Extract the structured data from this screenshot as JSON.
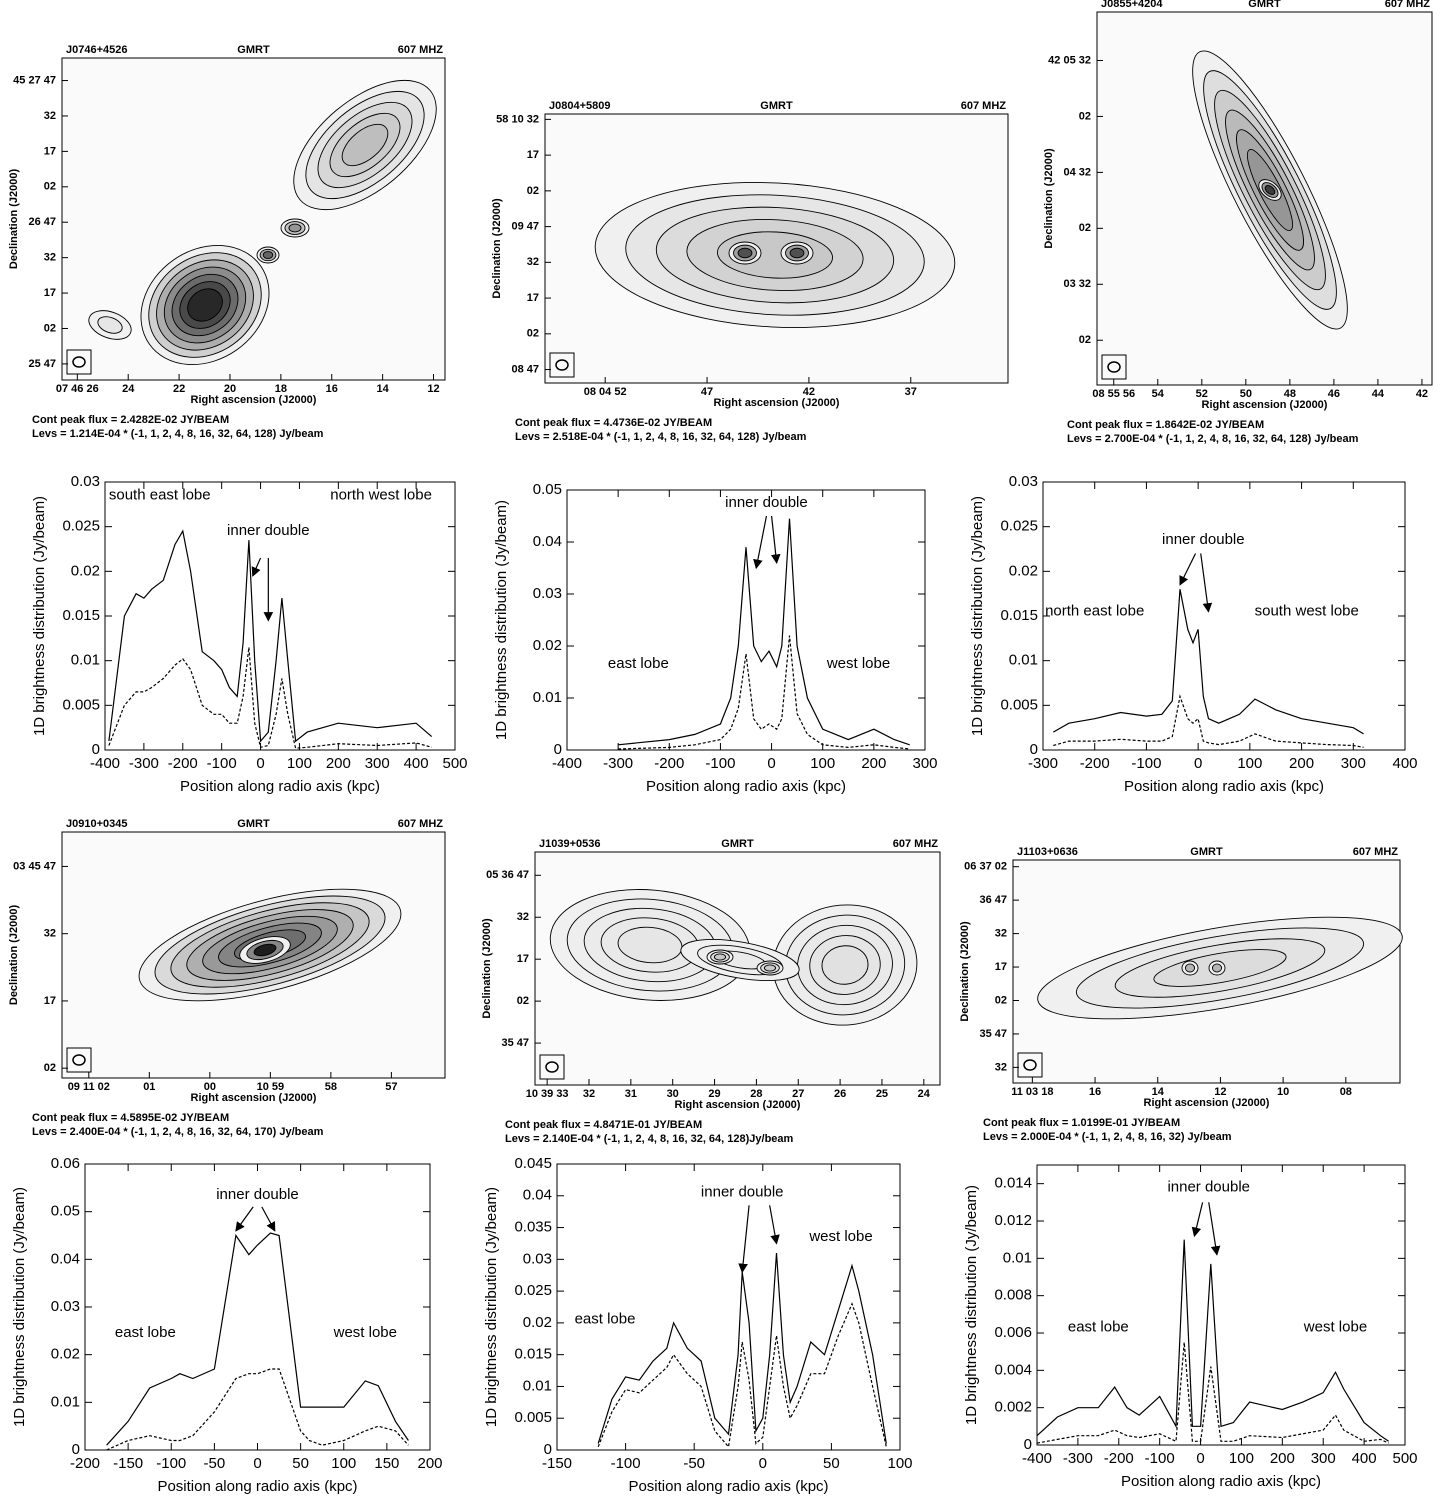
{
  "chart_data": [
    {
      "type": "radio-map",
      "source": "J0746+4526",
      "telescope": "GMRT",
      "frequency": "607 MHZ",
      "xlabel": "Right ascension (J2000)",
      "ylabel": "Declination (J2000)",
      "xticklabels": [
        "07 46 26",
        "24",
        "22",
        "20",
        "18",
        "16",
        "14",
        "12"
      ],
      "yticklabels": [
        "45 27 47",
        "32",
        "17",
        "02",
        "26 47",
        "32",
        "17",
        "02",
        "25 47"
      ],
      "notes": [
        "Cont peak flux =  2.4282E-02 JY/BEAM",
        "Levs = 1.214E-04 * (-1, 1, 2, 4, 8, 16, 32, 64, 128) Jy/beam"
      ]
    },
    {
      "type": "radio-map",
      "source": "J0804+5809",
      "telescope": "GMRT",
      "frequency": "607 MHZ",
      "xlabel": "Right ascension (J2000)",
      "ylabel": "Declination (J2000)",
      "xticklabels": [
        "08 04 52",
        "47",
        "42",
        "37"
      ],
      "yticklabels": [
        "58 10 32",
        "17",
        "02",
        "09 47",
        "32",
        "17",
        "02",
        "08 47"
      ],
      "notes": [
        "Cont peak flux =  4.4736E-02 JY/BEAM",
        "Levs = 2.518E-04 * (-1, 1, 2, 4, 8, 16, 32, 64, 128) Jy/beam"
      ]
    },
    {
      "type": "radio-map",
      "source": "J0855+4204",
      "telescope": "GMRT",
      "frequency": "607 MHZ",
      "xlabel": "Right ascension (J2000)",
      "ylabel": "Declination (J2000)",
      "xticklabels": [
        "08 55 56",
        "54",
        "52",
        "50",
        "48",
        "46",
        "44",
        "42"
      ],
      "yticklabels": [
        "42 05 32",
        "02",
        "04 32",
        "02",
        "03 32",
        "02"
      ],
      "notes": [
        "Cont peak flux =  1.8642E-02 JY/BEAM",
        "Levs = 2.700E-04 * (-1, 1, 2, 4, 8, 16, 32, 64, 128) Jy/beam"
      ]
    },
    {
      "type": "line",
      "xlabel": "Position along radio axis (kpc)",
      "ylabel": "1D brightness distribution (Jy/beam)",
      "xlim": [
        -400,
        500
      ],
      "xticks": [
        -400,
        -300,
        -200,
        -100,
        0,
        100,
        200,
        300,
        400,
        500
      ],
      "ylim": [
        0,
        0.03
      ],
      "yticks": [
        0,
        0.005,
        0.01,
        0.015,
        0.02,
        0.025,
        0.03
      ],
      "annotations": [
        "south east lobe",
        "north west lobe",
        "inner double"
      ],
      "x": [
        -390,
        -350,
        -320,
        -300,
        -280,
        -250,
        -220,
        -200,
        -180,
        -150,
        -120,
        -100,
        -80,
        -60,
        -45,
        -30,
        -15,
        0,
        20,
        40,
        55,
        70,
        90,
        120,
        200,
        300,
        400,
        440
      ],
      "series": [
        {
          "color": "#000000",
          "dashed": false,
          "values": [
            0.001,
            0.015,
            0.0175,
            0.017,
            0.018,
            0.019,
            0.023,
            0.0245,
            0.02,
            0.011,
            0.01,
            0.009,
            0.007,
            0.006,
            0.012,
            0.0235,
            0.01,
            0.001,
            0.002,
            0.01,
            0.017,
            0.01,
            0.001,
            0.002,
            0.003,
            0.0025,
            0.003,
            0.0015
          ]
        },
        {
          "color": "#000000",
          "dashed": true,
          "values": [
            0.0005,
            0.005,
            0.0065,
            0.0065,
            0.007,
            0.008,
            0.0095,
            0.0102,
            0.009,
            0.005,
            0.004,
            0.004,
            0.003,
            0.003,
            0.006,
            0.0115,
            0.003,
            0.0003,
            0.0005,
            0.004,
            0.008,
            0.004,
            0.0002,
            0.0003,
            0.0007,
            0.0005,
            0.0008,
            0.0003
          ]
        }
      ]
    },
    {
      "type": "line",
      "xlabel": "Position along radio axis (kpc)",
      "ylabel": "1D brightness distribution (Jy/beam)",
      "xlim": [
        -400,
        300
      ],
      "xticks": [
        -400,
        -300,
        -200,
        -100,
        0,
        100,
        200,
        300
      ],
      "ylim": [
        0,
        0.05
      ],
      "yticks": [
        0,
        0.01,
        0.02,
        0.03,
        0.04,
        0.05
      ],
      "annotations": [
        "inner double",
        "east lobe",
        "west lobe"
      ],
      "x": [
        -300,
        -200,
        -150,
        -100,
        -80,
        -65,
        -50,
        -35,
        -20,
        -5,
        10,
        20,
        35,
        50,
        70,
        100,
        150,
        200,
        240,
        270
      ],
      "series": [
        {
          "color": "#000000",
          "dashed": false,
          "values": [
            0.001,
            0.002,
            0.003,
            0.005,
            0.01,
            0.02,
            0.039,
            0.02,
            0.017,
            0.019,
            0.016,
            0.02,
            0.0445,
            0.02,
            0.01,
            0.004,
            0.002,
            0.004,
            0.002,
            0.001
          ]
        },
        {
          "color": "#000000",
          "dashed": true,
          "values": [
            0.0002,
            0.0005,
            0.001,
            0.002,
            0.004,
            0.008,
            0.0185,
            0.006,
            0.004,
            0.005,
            0.004,
            0.006,
            0.022,
            0.007,
            0.003,
            0.001,
            0.0005,
            0.001,
            0.0005,
            0.0002
          ]
        }
      ]
    },
    {
      "type": "line",
      "xlabel": "Position along radio axis (kpc)",
      "ylabel": "1D brightness distribution (Jy/beam)",
      "xlim": [
        -300,
        400
      ],
      "xticks": [
        -300,
        -200,
        -100,
        0,
        100,
        200,
        300,
        400
      ],
      "ylim": [
        0,
        0.03
      ],
      "yticks": [
        0,
        0.005,
        0.01,
        0.015,
        0.02,
        0.025,
        0.03
      ],
      "annotations": [
        "inner double",
        "north east lobe",
        "south west lobe"
      ],
      "x": [
        -280,
        -250,
        -200,
        -150,
        -100,
        -70,
        -50,
        -35,
        -20,
        -10,
        0,
        10,
        20,
        40,
        60,
        80,
        110,
        150,
        200,
        250,
        300,
        320
      ],
      "series": [
        {
          "color": "#000000",
          "dashed": false,
          "values": [
            0.002,
            0.003,
            0.0035,
            0.0042,
            0.0038,
            0.004,
            0.0055,
            0.018,
            0.0135,
            0.012,
            0.0135,
            0.006,
            0.0035,
            0.003,
            0.0035,
            0.004,
            0.0057,
            0.0045,
            0.0035,
            0.003,
            0.0025,
            0.0018
          ]
        },
        {
          "color": "#000000",
          "dashed": true,
          "values": [
            0.0005,
            0.001,
            0.001,
            0.0012,
            0.001,
            0.001,
            0.0015,
            0.006,
            0.0035,
            0.003,
            0.0035,
            0.001,
            0.0008,
            0.0006,
            0.0008,
            0.001,
            0.0018,
            0.001,
            0.0008,
            0.0006,
            0.0005,
            0.0003
          ]
        }
      ]
    },
    {
      "type": "radio-map",
      "source": "J0910+0345",
      "telescope": "GMRT",
      "frequency": "607 MHZ",
      "xlabel": "Right ascension (J2000)",
      "ylabel": "Declination (J2000)",
      "xticklabels": [
        "09 11 02",
        "01",
        "00",
        "10 59",
        "58",
        "57"
      ],
      "yticklabels": [
        "03 45 47",
        "32",
        "17",
        "02"
      ],
      "notes": [
        "Cont peak flux =  4.5895E-02 JY/BEAM",
        "Levs = 2.400E-04 * (-1, 1, 2, 4, 8, 16, 32, 64, 170) Jy/beam"
      ]
    },
    {
      "type": "radio-map",
      "source": "J1039+0536",
      "telescope": "GMRT",
      "frequency": "607 MHZ",
      "xlabel": "Right ascension (J2000)",
      "ylabel": "Declination (J2000)",
      "xticklabels": [
        "10 39 33",
        "32",
        "31",
        "30",
        "29",
        "28",
        "27",
        "26",
        "25",
        "24"
      ],
      "yticklabels": [
        "05 36 47",
        "32",
        "17",
        "02",
        "35 47"
      ],
      "notes": [
        "Cont peak flux =  4.8471E-01 JY/BEAM",
        "Levs = 2.140E-04 * (-1, 1, 2, 4, 8, 16, 32, 64, 128)Jy/beam"
      ]
    },
    {
      "type": "radio-map",
      "source": "J1103+0636",
      "telescope": "GMRT",
      "frequency": "607 MHZ",
      "xlabel": "Right ascension (J2000)",
      "ylabel": "Declination (J2000)",
      "xticklabels": [
        "11 03 18",
        "16",
        "14",
        "12",
        "10",
        "08"
      ],
      "yticklabels": [
        "06 37 02",
        "36 47",
        "32",
        "17",
        "02",
        "35 47",
        "32"
      ],
      "notes": [
        "Cont peak flux =  1.0199E-01 JY/BEAM",
        "Levs = 2.000E-04 * (-1, 1, 2, 4, 8, 16, 32) Jy/beam"
      ]
    },
    {
      "type": "line",
      "xlabel": "Position along radio axis (kpc)",
      "ylabel": "1D brightness distribution (Jy/beam)",
      "xlim": [
        -200,
        200
      ],
      "xticks": [
        -200,
        -150,
        -100,
        -50,
        0,
        50,
        100,
        150,
        200
      ],
      "ylim": [
        0,
        0.06
      ],
      "yticks": [
        0,
        0.01,
        0.02,
        0.03,
        0.04,
        0.05,
        0.06
      ],
      "annotations": [
        "inner double",
        "east lobe",
        "west lobe"
      ],
      "x": [
        -175,
        -150,
        -125,
        -100,
        -90,
        -75,
        -50,
        -25,
        -10,
        0,
        15,
        25,
        50,
        60,
        75,
        100,
        125,
        140,
        160,
        175
      ],
      "series": [
        {
          "color": "#000000",
          "dashed": false,
          "values": [
            0.001,
            0.006,
            0.013,
            0.015,
            0.016,
            0.015,
            0.017,
            0.045,
            0.041,
            0.043,
            0.0455,
            0.045,
            0.009,
            0.009,
            0.009,
            0.009,
            0.0145,
            0.0135,
            0.006,
            0.002
          ]
        },
        {
          "color": "#000000",
          "dashed": true,
          "values": [
            0,
            0.002,
            0.003,
            0.002,
            0.002,
            0.003,
            0.008,
            0.015,
            0.016,
            0.016,
            0.017,
            0.017,
            0.004,
            0.002,
            0.001,
            0.002,
            0.004,
            0.005,
            0.004,
            0.001
          ]
        }
      ]
    },
    {
      "type": "line",
      "xlabel": "Position along radio axis (kpc)",
      "ylabel": "1D brightness distribution (Jy/beam)",
      "xlim": [
        -150,
        100
      ],
      "xticks": [
        -150,
        -100,
        -50,
        0,
        50,
        100
      ],
      "ylim": [
        0,
        0.045
      ],
      "yticks": [
        0,
        0.005,
        0.01,
        0.015,
        0.02,
        0.025,
        0.03,
        0.035,
        0.04,
        0.045
      ],
      "annotations": [
        "inner double",
        "east lobe",
        "west lobe"
      ],
      "x": [
        -120,
        -110,
        -100,
        -90,
        -80,
        -70,
        -65,
        -55,
        -45,
        -35,
        -25,
        -18,
        -15,
        -10,
        -5,
        0,
        5,
        10,
        15,
        20,
        25,
        35,
        45,
        55,
        65,
        70,
        80,
        90
      ],
      "series": [
        {
          "color": "#000000",
          "dashed": false,
          "values": [
            0.001,
            0.008,
            0.0115,
            0.011,
            0.014,
            0.016,
            0.02,
            0.016,
            0.014,
            0.005,
            0.0025,
            0.015,
            0.028,
            0.02,
            0.003,
            0.005,
            0.015,
            0.031,
            0.015,
            0.0075,
            0.01,
            0.017,
            0.015,
            0.022,
            0.029,
            0.025,
            0.015,
            0.001
          ]
        },
        {
          "color": "#000000",
          "dashed": true,
          "values": [
            0.0005,
            0.006,
            0.0095,
            0.009,
            0.011,
            0.013,
            0.015,
            0.012,
            0.01,
            0.003,
            0.0005,
            0.01,
            0.017,
            0.011,
            0.001,
            0.002,
            0.01,
            0.018,
            0.01,
            0.005,
            0.007,
            0.012,
            0.012,
            0.018,
            0.023,
            0.02,
            0.01,
            0.0005
          ]
        }
      ]
    },
    {
      "type": "line",
      "xlabel": "Position along radio axis (kpc)",
      "ylabel": "1D brightness distribution (Jy/beam)",
      "xlim": [
        -400,
        500
      ],
      "xticks": [
        -400,
        -300,
        -200,
        -100,
        0,
        100,
        200,
        300,
        400,
        500
      ],
      "ylim": [
        0,
        0.015
      ],
      "yticks": [
        0,
        0.002,
        0.004,
        0.006,
        0.008,
        0.01,
        0.012,
        0.014
      ],
      "annotations": [
        "inner double",
        "east lobe",
        "west lobe"
      ],
      "x": [
        -400,
        -350,
        -300,
        -250,
        -210,
        -180,
        -150,
        -100,
        -60,
        -40,
        -20,
        0,
        25,
        50,
        80,
        120,
        200,
        250,
        300,
        330,
        350,
        400,
        440,
        460
      ],
      "series": [
        {
          "color": "#000000",
          "dashed": false,
          "values": [
            0.0005,
            0.0015,
            0.002,
            0.002,
            0.0031,
            0.002,
            0.0016,
            0.0026,
            0.001,
            0.011,
            0.001,
            0.001,
            0.0097,
            0.001,
            0.0012,
            0.0023,
            0.0019,
            0.0023,
            0.0028,
            0.0039,
            0.003,
            0.0012,
            0.0005,
            0.0002
          ]
        },
        {
          "color": "#000000",
          "dashed": true,
          "values": [
            0.0001,
            0.0003,
            0.0005,
            0.0005,
            0.0008,
            0.0005,
            0.0004,
            0.0006,
            0.0002,
            0.0055,
            0.0002,
            0.0002,
            0.0042,
            0.0002,
            0.0002,
            0.0005,
            0.0004,
            0.0006,
            0.0008,
            0.0016,
            0.0008,
            0.0002,
            0.0003,
            0.0001
          ]
        }
      ]
    }
  ]
}
